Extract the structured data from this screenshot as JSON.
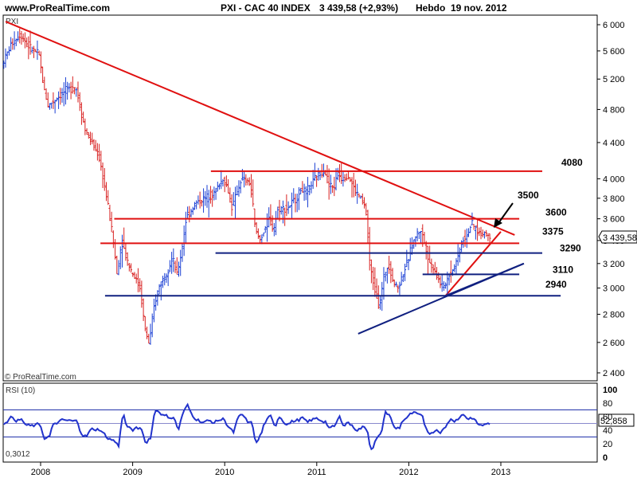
{
  "header": {
    "site": "www.ProRealTime.com",
    "title": "PXI - CAC 40 INDEX",
    "price": "3 439,58 (+2,93%)",
    "period": "Hebdo",
    "date": "19 nov. 2012"
  },
  "panel_tag": "PXI",
  "watermark": "© ProRealTime.com",
  "rsi_label": "RSI (10)",
  "rsi_value": "52,858",
  "rsi_sub_value": "0,3012",
  "last_price_tag": "3 439,58",
  "colors": {
    "bull": "#1a3fd4",
    "bear": "#d82020",
    "resistance": "#e01010",
    "support": "#102080",
    "rsi": "#2233cc"
  },
  "chart_data": [
    {
      "type": "candlestick",
      "title": "PXI - CAC 40 INDEX",
      "timeframe": "Hebdo",
      "x_ticks": [
        "2008",
        "2009",
        "2010",
        "2011",
        "2012",
        "2013"
      ],
      "y_ticks": [
        "6 000",
        "5 600",
        "5 200",
        "4 800",
        "4 400",
        "4 000",
        "3 800",
        "3 600",
        "3 400",
        "3 200",
        "3 000",
        "2 800",
        "2 600",
        "2 400"
      ],
      "y_scale": "log",
      "ylim": [
        2350,
        6200
      ],
      "price_path": [
        [
          2007.6,
          5400
        ],
        [
          2007.7,
          5700
        ],
        [
          2007.8,
          5850
        ],
        [
          2007.9,
          5650
        ],
        [
          2008.0,
          5550
        ],
        [
          2008.05,
          5100
        ],
        [
          2008.1,
          4850
        ],
        [
          2008.2,
          4950
        ],
        [
          2008.3,
          5050
        ],
        [
          2008.4,
          5100
        ],
        [
          2008.5,
          4550
        ],
        [
          2008.6,
          4350
        ],
        [
          2008.65,
          4250
        ],
        [
          2008.7,
          4000
        ],
        [
          2008.8,
          3450
        ],
        [
          2008.85,
          3100
        ],
        [
          2008.9,
          3400
        ],
        [
          2008.95,
          3250
        ],
        [
          2009.0,
          3150
        ],
        [
          2009.1,
          3000
        ],
        [
          2009.15,
          2700
        ],
        [
          2009.2,
          2580
        ],
        [
          2009.25,
          2850
        ],
        [
          2009.3,
          3000
        ],
        [
          2009.4,
          3150
        ],
        [
          2009.45,
          3250
        ],
        [
          2009.5,
          3100
        ],
        [
          2009.55,
          3300
        ],
        [
          2009.6,
          3600
        ],
        [
          2009.7,
          3750
        ],
        [
          2009.8,
          3800
        ],
        [
          2009.9,
          3850
        ],
        [
          2010.0,
          4000
        ],
        [
          2010.05,
          3900
        ],
        [
          2010.1,
          3700
        ],
        [
          2010.2,
          4000
        ],
        [
          2010.3,
          3950
        ],
        [
          2010.35,
          3500
        ],
        [
          2010.4,
          3400
        ],
        [
          2010.45,
          3500
        ],
        [
          2010.5,
          3600
        ],
        [
          2010.55,
          3500
        ],
        [
          2010.6,
          3700
        ],
        [
          2010.7,
          3700
        ],
        [
          2010.8,
          3800
        ],
        [
          2010.85,
          3900
        ],
        [
          2010.9,
          3850
        ],
        [
          2011.0,
          4000
        ],
        [
          2011.05,
          4050
        ],
        [
          2011.1,
          4100
        ],
        [
          2011.15,
          3950
        ],
        [
          2011.2,
          3900
        ],
        [
          2011.25,
          4050
        ],
        [
          2011.3,
          4000
        ],
        [
          2011.35,
          4050
        ],
        [
          2011.4,
          3950
        ],
        [
          2011.45,
          3850
        ],
        [
          2011.5,
          3800
        ],
        [
          2011.55,
          3700
        ],
        [
          2011.6,
          3150
        ],
        [
          2011.65,
          3000
        ],
        [
          2011.7,
          2850
        ],
        [
          2011.75,
          3100
        ],
        [
          2011.8,
          3200
        ],
        [
          2011.85,
          3050
        ],
        [
          2011.9,
          3000
        ],
        [
          2011.95,
          3100
        ],
        [
          2012.0,
          3200
        ],
        [
          2012.05,
          3350
        ],
        [
          2012.1,
          3450
        ],
        [
          2012.15,
          3500
        ],
        [
          2012.2,
          3350
        ],
        [
          2012.25,
          3200
        ],
        [
          2012.3,
          3150
        ],
        [
          2012.35,
          3050
        ],
        [
          2012.4,
          3000
        ],
        [
          2012.45,
          3100
        ],
        [
          2012.5,
          3150
        ],
        [
          2012.55,
          3250
        ],
        [
          2012.6,
          3400
        ],
        [
          2012.65,
          3450
        ],
        [
          2012.7,
          3550
        ],
        [
          2012.75,
          3500
        ],
        [
          2012.8,
          3450
        ],
        [
          2012.85,
          3480
        ],
        [
          2012.88,
          3440
        ]
      ],
      "levels": [
        {
          "label": "4080",
          "value": 4080,
          "x_from": 2009.85,
          "x_to": 2013.45,
          "color": "#e01010"
        },
        {
          "label": "3600",
          "value": 3600,
          "x_from": 2008.8,
          "x_to": 2013.2,
          "color": "#e01010"
        },
        {
          "label": "3375",
          "value": 3375,
          "x_from": 2008.65,
          "x_to": 2013.2,
          "color": "#e01010"
        },
        {
          "label": "3290",
          "value": 3290,
          "x_from": 2009.9,
          "x_to": 2013.45,
          "color": "#102080"
        },
        {
          "label": "3110",
          "value": 3110,
          "x_from": 2012.15,
          "x_to": 2013.2,
          "color": "#102080"
        },
        {
          "label": "2940",
          "value": 2940,
          "x_from": 2008.7,
          "x_to": 2013.65,
          "color": "#102080"
        }
      ],
      "trendlines": [
        {
          "from": [
            2007.62,
            6050
          ],
          "to": [
            2013.15,
            3450
          ],
          "color": "#e01010"
        },
        {
          "from": [
            2012.4,
            2940
          ],
          "to": [
            2013.0,
            3480
          ],
          "color": "#e01010"
        },
        {
          "from": [
            2011.45,
            2660
          ],
          "to": [
            2013.25,
            3200
          ],
          "color": "#102080"
        },
        {
          "from": [
            2012.4,
            2940
          ],
          "to": [
            2013.25,
            3200
          ],
          "color": "#102080"
        }
      ],
      "annotation": {
        "label": "3500",
        "value": 3500
      }
    },
    {
      "type": "line",
      "title": "RSI (10)",
      "y_ticks": [
        "100",
        "80",
        "60",
        "40",
        "20",
        "0"
      ],
      "ylim": [
        0,
        100
      ],
      "reference_lines": [
        70,
        50,
        30
      ],
      "last_value": 52.858
    }
  ]
}
